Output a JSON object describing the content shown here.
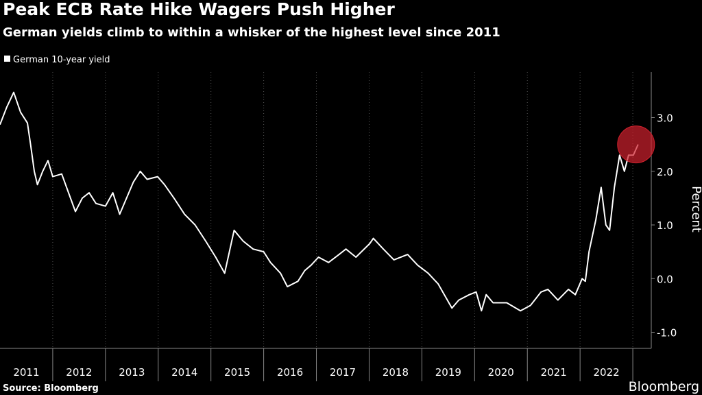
{
  "chart_data": {
    "type": "line",
    "title": "Peak ECB Rate Hike Wagers Push Higher",
    "subtitle": "German yields climb to within a whisker of the highest level since 2011",
    "y_label": "Percent",
    "source": "Source: Bloomberg",
    "brand": "Bloomberg",
    "x": [
      2011.0,
      2011.13,
      2011.26,
      2011.39,
      2011.52,
      2011.58,
      2011.65,
      2011.71,
      2011.81,
      2011.91,
      2012.0,
      2012.17,
      2012.3,
      2012.43,
      2012.56,
      2012.69,
      2012.82,
      2013.0,
      2013.14,
      2013.27,
      2013.4,
      2013.53,
      2013.66,
      2013.79,
      2013.99,
      2014.12,
      2014.3,
      2014.5,
      2014.7,
      2014.9,
      2015.09,
      2015.26,
      2015.35,
      2015.44,
      2015.61,
      2015.8,
      2016.0,
      2016.13,
      2016.32,
      2016.45,
      2016.65,
      2016.78,
      2016.9,
      2017.04,
      2017.23,
      2017.43,
      2017.56,
      2017.75,
      2018.01,
      2018.08,
      2018.27,
      2018.47,
      2018.73,
      2018.92,
      2019.12,
      2019.31,
      2019.57,
      2019.7,
      2019.9,
      2020.03,
      2020.13,
      2020.22,
      2020.35,
      2020.61,
      2020.87,
      2021.06,
      2021.26,
      2021.39,
      2021.58,
      2021.78,
      2021.91,
      2022.04,
      2022.1,
      2022.17,
      2022.3,
      2022.4,
      2022.49,
      2022.56,
      2022.65,
      2022.75,
      2022.84,
      2022.92,
      2023.01,
      2023.1
    ],
    "series": [
      {
        "name": "German 10-year yield",
        "color": "#ffffff",
        "values": [
          2.87,
          3.2,
          3.47,
          3.1,
          2.9,
          2.5,
          2.0,
          1.75,
          2.0,
          2.2,
          1.9,
          1.95,
          1.6,
          1.25,
          1.5,
          1.6,
          1.4,
          1.35,
          1.6,
          1.2,
          1.5,
          1.8,
          2.0,
          1.85,
          1.9,
          1.75,
          1.5,
          1.2,
          1.0,
          0.7,
          0.4,
          0.1,
          0.5,
          0.9,
          0.7,
          0.55,
          0.5,
          0.3,
          0.1,
          -0.15,
          -0.05,
          0.15,
          0.25,
          0.4,
          0.3,
          0.45,
          0.55,
          0.4,
          0.65,
          0.75,
          0.55,
          0.35,
          0.45,
          0.25,
          0.1,
          -0.1,
          -0.55,
          -0.4,
          -0.3,
          -0.25,
          -0.6,
          -0.3,
          -0.45,
          -0.45,
          -0.6,
          -0.5,
          -0.25,
          -0.2,
          -0.4,
          -0.2,
          -0.3,
          0.0,
          -0.05,
          0.5,
          1.1,
          1.7,
          1.0,
          0.9,
          1.7,
          2.3,
          2.0,
          2.3,
          2.3,
          2.5
        ]
      }
    ],
    "xlim": [
      2011.0,
      2023.35
    ],
    "xticks": [
      {
        "value": 2011.5,
        "label": "2011"
      },
      {
        "value": 2012.5,
        "label": "2012"
      },
      {
        "value": 2013.5,
        "label": "2013"
      },
      {
        "value": 2014.5,
        "label": "2014"
      },
      {
        "value": 2015.5,
        "label": "2015"
      },
      {
        "value": 2016.5,
        "label": "2016"
      },
      {
        "value": 2017.5,
        "label": "2017"
      },
      {
        "value": 2018.5,
        "label": "2018"
      },
      {
        "value": 2019.5,
        "label": "2019"
      },
      {
        "value": 2020.5,
        "label": "2020"
      },
      {
        "value": 2021.5,
        "label": "2021"
      },
      {
        "value": 2022.5,
        "label": "2022"
      }
    ],
    "ylim": [
      -1.3,
      3.85
    ],
    "yticks": [
      {
        "value": -1,
        "label": "-1.0"
      },
      {
        "value": 0,
        "label": "0.0"
      },
      {
        "value": 1,
        "label": "1.0"
      },
      {
        "value": 2,
        "label": "2.0"
      },
      {
        "value": 3,
        "label": "3.0"
      }
    ],
    "highlight_color": "#d0212d",
    "grid": true
  }
}
